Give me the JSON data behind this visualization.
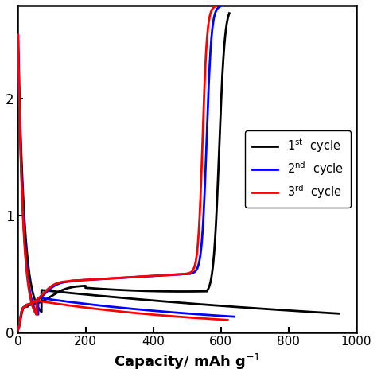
{
  "title": "",
  "xlabel": "Capacity/ mAh g$^{-1}$",
  "ylabel": "",
  "xlim": [
    0,
    1000
  ],
  "ylim": [
    0,
    2.8
  ],
  "ytick_positions": [
    0,
    1,
    2
  ],
  "ytick_labels": [
    "0",
    "1",
    "2"
  ],
  "xticks": [
    0,
    200,
    400,
    600,
    800,
    1000
  ],
  "background_color": "#ffffff",
  "line_colors": [
    "black",
    "blue",
    "red"
  ],
  "line_width": 2.0
}
